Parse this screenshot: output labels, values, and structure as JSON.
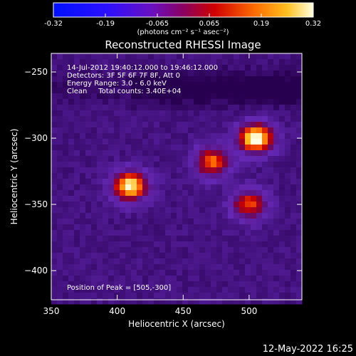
{
  "chart_data": {
    "type": "heatmap",
    "title": "Reconstructed RHESSI Image",
    "xlabel": "Heliocentric X (arcsec)",
    "ylabel": "Heliocentric Y (arcsec)",
    "xlim": [
      350,
      540
    ],
    "ylim": [
      -422,
      -236
    ],
    "xticks": [
      350,
      400,
      450,
      500
    ],
    "yticks": [
      -250,
      -300,
      -350,
      -400
    ],
    "colorbar": {
      "range": [
        -0.32,
        0.32
      ],
      "ticks": [
        "-0.32",
        "-0.19",
        "-0.065",
        "0.065",
        "0.19",
        "0.32"
      ],
      "unit_label": "(photons cm⁻² s⁻¹ asec⁻²)"
    },
    "annotations": [
      "14-Jul-2012 19:40:12.000 to 19:46:12.000",
      "Detectors: 3F 5F 6F 7F 8F, Att 0",
      "Energy Range: 3.0 - 6.0 keV",
      "Clean     Total counts: 3.40E+04"
    ],
    "peak_label": "Position of Peak = [505,-300]",
    "sources": [
      {
        "x": 505,
        "y": -300,
        "peak": 0.32
      },
      {
        "x": 410,
        "y": -336,
        "peak": 0.3
      },
      {
        "x": 500,
        "y": -350,
        "peak": 0.2
      },
      {
        "x": 472,
        "y": -318,
        "peak": 0.22
      }
    ]
  },
  "timestamp": "12-May-2022 16:25"
}
